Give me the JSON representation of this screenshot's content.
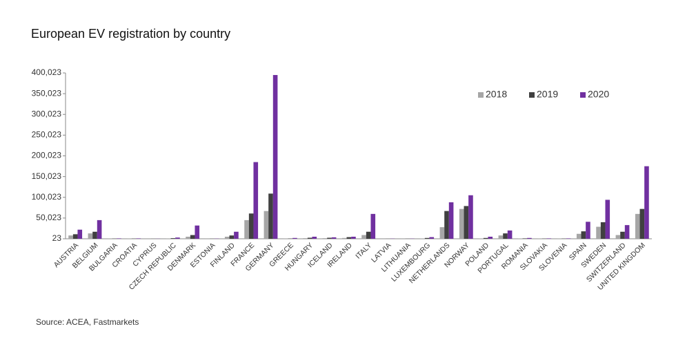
{
  "chart_data": {
    "type": "bar",
    "title": "European EV registration by country",
    "source": "Source: ACEA, Fastmarkets",
    "categories": [
      "AUSTRIA",
      "BELGIUM",
      "BULGARIA",
      "CROATIA",
      "CYPRUS",
      "CZECH REPUBLIC",
      "DENMARK",
      "ESTONIA",
      "FINLAND",
      "FRANCE",
      "GERMANY",
      "GREECE",
      "HUNGARY",
      "ICELAND",
      "IRELAND",
      "ITALY",
      "LATVIA",
      "LITHUANIA",
      "LUXEMBOURG",
      "NETHERLANDS",
      "NORWAY",
      "POLAND",
      "PORTUGAL",
      "ROMANIA",
      "SLOVAKIA",
      "SLOVENIA",
      "SPAIN",
      "SWEDEN",
      "SWITZERLAND",
      "UNITED KINGDOM"
    ],
    "series": [
      {
        "name": "2018",
        "color": "#a6a6a6",
        "values": [
          8000,
          13000,
          300,
          300,
          100,
          1000,
          5000,
          200,
          5000,
          45000,
          67000,
          300,
          1500,
          1500,
          2000,
          9000,
          100,
          200,
          1000,
          28000,
          72000,
          1000,
          8000,
          500,
          300,
          300,
          12000,
          29000,
          9000,
          60000
        ]
      },
      {
        "name": "2019",
        "color": "#404040",
        "values": [
          11000,
          17000,
          500,
          500,
          200,
          1500,
          9000,
          300,
          8000,
          61000,
          109000,
          700,
          2500,
          2500,
          4000,
          17000,
          200,
          300,
          2000,
          67000,
          79000,
          2000,
          13000,
          1000,
          500,
          500,
          18000,
          40000,
          17000,
          72000
        ]
      },
      {
        "name": "2020",
        "color": "#7030a0",
        "values": [
          22000,
          45000,
          1000,
          1000,
          300,
          3000,
          32000,
          500,
          17000,
          185000,
          395000,
          2000,
          5000,
          3500,
          5000,
          60000,
          500,
          500,
          4000,
          88000,
          105000,
          5000,
          20000,
          2000,
          1000,
          1000,
          41000,
          94000,
          33000,
          175000
        ]
      }
    ],
    "ylim": [
      23,
      400023
    ],
    "yticks": [
      23,
      {
        "value": 50023,
        "label": "50,023"
      },
      {
        "value": 100023,
        "label": "100,023"
      },
      {
        "value": 150023,
        "label": "150,023"
      },
      {
        "value": 200023,
        "label": "200,023"
      },
      {
        "value": 250023,
        "label": "250,023"
      },
      {
        "value": 300023,
        "label": "300,023"
      },
      {
        "value": 350023,
        "label": "350,023"
      },
      {
        "value": 400023,
        "label": "400,023"
      }
    ],
    "legend": "upper right",
    "grid": false
  }
}
